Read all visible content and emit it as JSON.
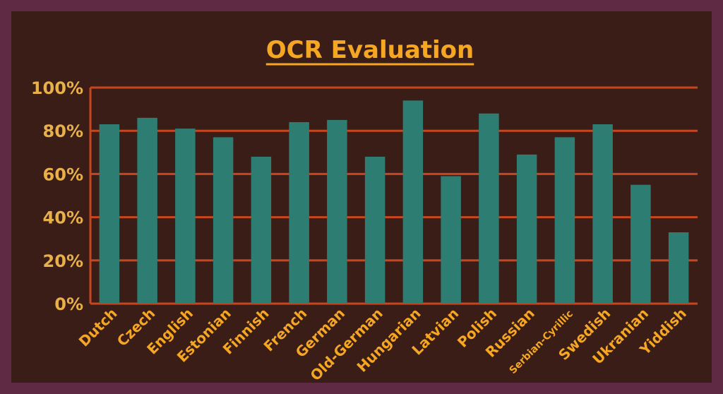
{
  "chart_data": {
    "type": "bar",
    "title": "OCR Evaluation",
    "xlabel": "",
    "ylabel": "",
    "ylim": [
      0,
      100
    ],
    "yticks": [
      "0%",
      "20%",
      "40%",
      "60%",
      "80%",
      "100%"
    ],
    "categories": [
      "Dutch",
      "Czech",
      "English",
      "Estonian",
      "Finnish",
      "French",
      "German",
      "Old-German",
      "Hungarian",
      "Latvian",
      "Polish",
      "Russian",
      "Serbian-Cyrillic",
      "Swedish",
      "Ukranian",
      "Yiddish"
    ],
    "values": [
      83,
      86,
      81,
      77,
      68,
      84,
      85,
      68,
      94,
      59,
      88,
      69,
      77,
      83,
      55,
      33
    ],
    "grid": true,
    "legend": "none",
    "colors": {
      "bar": "#2e7d72",
      "grid": "#c8461f",
      "title": "#f5a623",
      "tick_label": "#f5a623",
      "background": "#3a1d17",
      "frame": "#5e2a44"
    }
  }
}
